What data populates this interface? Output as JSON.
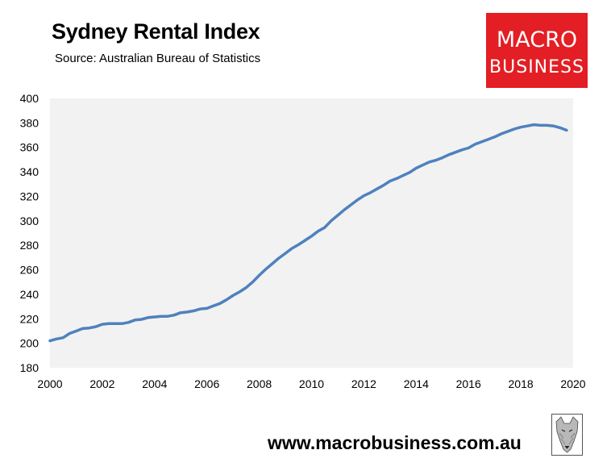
{
  "header": {
    "title": "Sydney Rental Index",
    "subtitle": "Source: Australian Bureau of Statistics"
  },
  "logo": {
    "line1": "MACRO",
    "line2": "BUSINESS",
    "background": "#e31e24",
    "text_color": "#ffffff"
  },
  "footer": {
    "url": "www.macrobusiness.com.au",
    "icon": "wolf-icon"
  },
  "colors": {
    "plot_background": "#f2f2f2",
    "line": "#4f81bd"
  },
  "chart_data": {
    "type": "line",
    "title": "Sydney Rental Index",
    "subtitle": "Source: Australian Bureau of Statistics",
    "xlabel": "",
    "ylabel": "",
    "xlim": [
      2000,
      2020
    ],
    "ylim": [
      180,
      400
    ],
    "x_ticks": [
      2000,
      2002,
      2004,
      2006,
      2008,
      2010,
      2012,
      2014,
      2016,
      2018,
      2020
    ],
    "y_ticks": [
      180,
      200,
      220,
      240,
      260,
      280,
      300,
      320,
      340,
      360,
      380,
      400
    ],
    "grid": false,
    "legend": "none",
    "series": [
      {
        "x": [
          2000.0,
          2000.25,
          2000.5,
          2000.75,
          2001.0,
          2001.25,
          2001.5,
          2001.75,
          2002.0,
          2002.25,
          2002.5,
          2002.75,
          2003.0,
          2003.25,
          2003.5,
          2003.75,
          2004.0,
          2004.25,
          2004.5,
          2004.75,
          2005.0,
          2005.25,
          2005.5,
          2005.75,
          2006.0,
          2006.25,
          2006.5,
          2006.75,
          2007.0,
          2007.25,
          2007.5,
          2007.75,
          2008.0,
          2008.25,
          2008.5,
          2008.75,
          2009.0,
          2009.25,
          2009.5,
          2009.75,
          2010.0,
          2010.25,
          2010.5,
          2010.75,
          2011.0,
          2011.25,
          2011.5,
          2011.75,
          2012.0,
          2012.25,
          2012.5,
          2012.75,
          2013.0,
          2013.25,
          2013.5,
          2013.75,
          2014.0,
          2014.25,
          2014.5,
          2014.75,
          2015.0,
          2015.25,
          2015.5,
          2015.75,
          2016.0,
          2016.25,
          2016.5,
          2016.75,
          2017.0,
          2017.25,
          2017.5,
          2017.75,
          2018.0,
          2018.25,
          2018.5,
          2018.75,
          2019.0,
          2019.25,
          2019.5,
          2019.75
        ],
        "y": [
          202,
          203.5,
          204.5,
          208,
          210,
          212,
          212.5,
          213.5,
          215.5,
          216,
          216,
          216,
          217,
          219,
          219.5,
          221,
          221.5,
          222,
          222,
          223,
          225,
          225.5,
          226.5,
          228,
          228.5,
          230.5,
          232.5,
          235.5,
          239,
          242,
          245.5,
          250,
          255.5,
          260.5,
          265,
          269.5,
          273.5,
          277.5,
          280.5,
          284,
          287.5,
          291.5,
          294.5,
          300,
          304.5,
          309,
          313,
          317,
          320.5,
          323,
          326,
          329,
          332.5,
          334.5,
          337,
          339.5,
          343,
          345.5,
          348,
          349.5,
          351.5,
          354,
          356,
          358,
          359.5,
          362.5,
          364.5,
          366.5,
          368.5,
          371,
          373,
          375,
          376.5,
          377.5,
          378.5,
          378,
          378,
          377.5,
          376,
          374
        ]
      }
    ]
  }
}
